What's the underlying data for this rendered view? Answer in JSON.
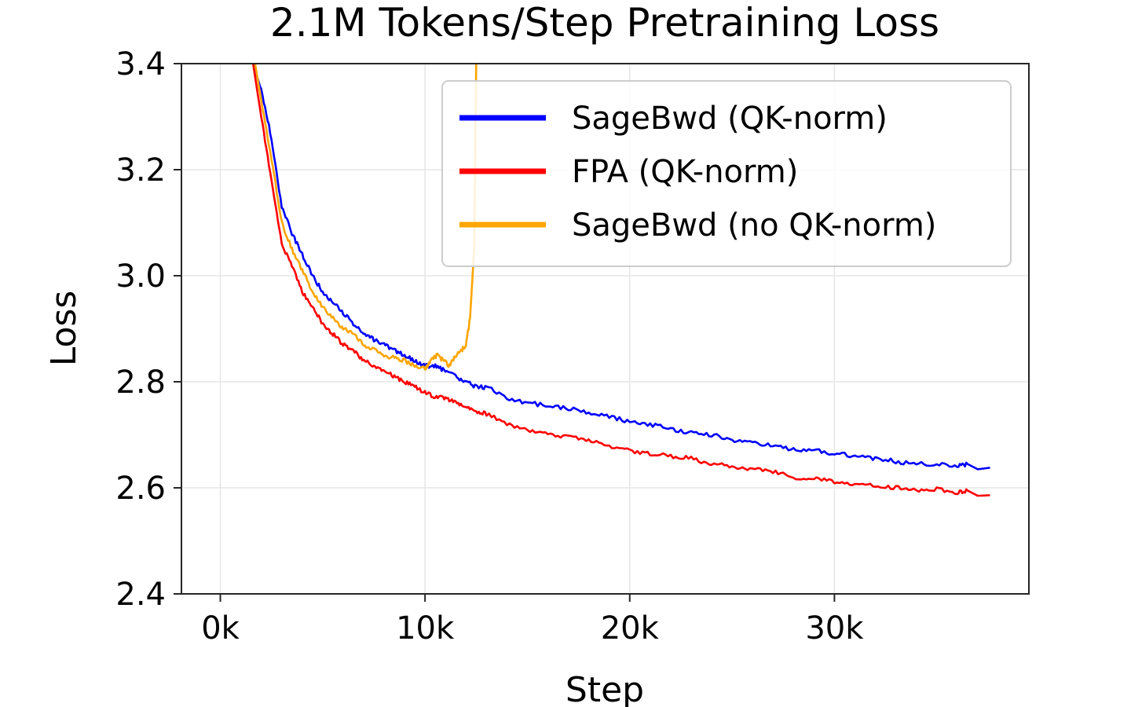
{
  "chart_data": {
    "type": "line",
    "title": "2.1M Tokens/Step Pretraining Loss",
    "xlabel": "Step",
    "ylabel": "Loss",
    "xlim": [
      -1900,
      39500
    ],
    "ylim": [
      2.4,
      3.4
    ],
    "xticks": [
      0,
      10000,
      20000,
      30000
    ],
    "xtick_labels": [
      "0k",
      "10k",
      "20k",
      "30k"
    ],
    "yticks": [
      2.4,
      2.6,
      2.8,
      3.0,
      3.2,
      3.4
    ],
    "ytick_labels": [
      "2.4",
      "2.6",
      "2.8",
      "3.0",
      "3.2",
      "3.4"
    ],
    "grid": true,
    "legend_position": "top-right",
    "series": [
      {
        "name": "SageBwd (QK-norm)",
        "color": "#0000ff",
        "x": [
          1600,
          2000,
          2500,
          3000,
          3500,
          4000,
          4500,
          5000,
          5500,
          6000,
          6500,
          7000,
          7500,
          8000,
          8500,
          9000,
          9500,
          10000,
          10500,
          11000,
          11500,
          12000,
          12500,
          13000,
          14000,
          15000,
          16000,
          17000,
          18000,
          19000,
          20000,
          21000,
          22000,
          23000,
          24000,
          25000,
          26000,
          27000,
          28000,
          29000,
          30000,
          31000,
          32000,
          33000,
          34000,
          35000,
          36000,
          36500,
          37000,
          37600
        ],
        "y": [
          3.4,
          3.35,
          3.26,
          3.13,
          3.08,
          3.04,
          3.0,
          2.97,
          2.95,
          2.93,
          2.91,
          2.89,
          2.88,
          2.87,
          2.86,
          2.85,
          2.84,
          2.83,
          2.83,
          2.82,
          2.81,
          2.8,
          2.79,
          2.79,
          2.77,
          2.76,
          2.755,
          2.75,
          2.74,
          2.735,
          2.725,
          2.72,
          2.71,
          2.705,
          2.7,
          2.69,
          2.685,
          2.68,
          2.672,
          2.67,
          2.665,
          2.66,
          2.655,
          2.65,
          2.645,
          2.645,
          2.64,
          2.645,
          2.635,
          2.638
        ]
      },
      {
        "name": "FPA (QK-norm)",
        "color": "#ff0000",
        "x": [
          1600,
          2000,
          2500,
          3000,
          3500,
          4000,
          4500,
          5000,
          5500,
          6000,
          6500,
          7000,
          7500,
          8000,
          8500,
          9000,
          9500,
          10000,
          10500,
          11000,
          11500,
          12000,
          12500,
          13000,
          14000,
          15000,
          16000,
          17000,
          18000,
          19000,
          20000,
          21000,
          22000,
          23000,
          24000,
          25000,
          26000,
          27000,
          28000,
          29000,
          30000,
          31000,
          32000,
          33000,
          34000,
          35000,
          36000,
          36500,
          37000,
          37600
        ],
        "y": [
          3.4,
          3.3,
          3.18,
          3.06,
          3.02,
          2.97,
          2.94,
          2.91,
          2.89,
          2.87,
          2.86,
          2.84,
          2.83,
          2.82,
          2.81,
          2.8,
          2.79,
          2.78,
          2.77,
          2.77,
          2.76,
          2.75,
          2.745,
          2.74,
          2.72,
          2.71,
          2.7,
          2.695,
          2.69,
          2.68,
          2.67,
          2.665,
          2.66,
          2.655,
          2.645,
          2.64,
          2.635,
          2.63,
          2.62,
          2.618,
          2.612,
          2.608,
          2.603,
          2.6,
          2.595,
          2.597,
          2.59,
          2.595,
          2.585,
          2.586
        ]
      },
      {
        "name": "SageBwd (no QK-norm)",
        "color": "#ffa500",
        "x": [
          1700,
          2000,
          2500,
          3000,
          3500,
          4000,
          4500,
          5000,
          5500,
          6000,
          6500,
          7000,
          7500,
          8000,
          8500,
          9000,
          9500,
          10000,
          10300,
          10600,
          10900,
          11200,
          11500,
          11800,
          12000,
          12200,
          12400,
          12500
        ],
        "y": [
          3.4,
          3.33,
          3.22,
          3.1,
          3.05,
          3.01,
          2.97,
          2.94,
          2.92,
          2.9,
          2.89,
          2.87,
          2.86,
          2.85,
          2.845,
          2.84,
          2.83,
          2.825,
          2.84,
          2.85,
          2.84,
          2.83,
          2.85,
          2.86,
          2.87,
          2.92,
          3.05,
          3.4
        ]
      }
    ]
  }
}
